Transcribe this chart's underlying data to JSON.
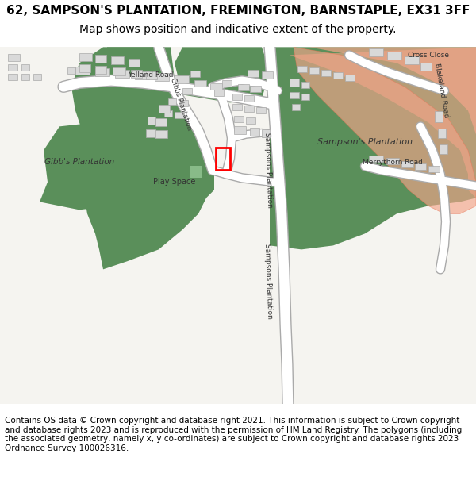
{
  "title": "62, SAMPSON'S PLANTATION, FREMINGTON, BARNSTAPLE, EX31 3FF",
  "subtitle": "Map shows position and indicative extent of the property.",
  "footer": "Contains OS data © Crown copyright and database right 2021. This information is subject to Crown copyright and database rights 2023 and is reproduced with the permission of HM Land Registry. The polygons (including the associated geometry, namely x, y co-ordinates) are subject to Crown copyright and database rights 2023 Ordnance Survey 100026316.",
  "bg_color": "#f5f4f0",
  "map_bg": "#f5f4f0",
  "road_color": "#ffffff",
  "road_outline": "#cccccc",
  "green_color": "#5a8f5a",
  "green_light": "#7ab87a",
  "building_color": "#d9d9d9",
  "building_outline": "#aaaaaa",
  "highlight_color": "#f4a58a",
  "highlight_outline": "#e8785a",
  "plot_color": "#ff0000",
  "title_fontsize": 11,
  "subtitle_fontsize": 10,
  "footer_fontsize": 7.5
}
